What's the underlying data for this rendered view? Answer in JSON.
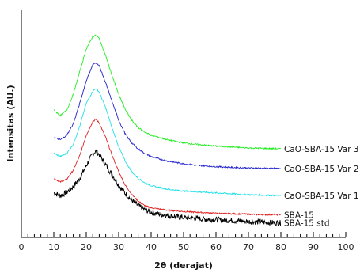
{
  "chart_data": {
    "type": "line",
    "title": "",
    "xlabel": "2θ (derajat)",
    "ylabel": "Intensitas (AU.)",
    "xlim": [
      0,
      100
    ],
    "xticks": [
      0,
      10,
      20,
      30,
      40,
      50,
      60,
      70,
      80,
      90,
      100
    ],
    "minor_tick_step": 2,
    "y_tick_labels": false,
    "grid": false,
    "legend": "inline-right",
    "series": [
      {
        "name": "SBA-15 std",
        "color": "#000000",
        "noise": 0.06,
        "x": [
          10,
          12,
          14,
          16,
          18,
          20,
          22,
          23,
          24,
          26,
          28,
          30,
          32,
          34,
          36,
          38,
          40,
          45,
          50,
          55,
          60,
          65,
          70,
          75,
          80
        ],
        "y": [
          0.98,
          0.92,
          0.99,
          1.12,
          1.3,
          1.58,
          1.84,
          1.9,
          1.82,
          1.6,
          1.38,
          1.15,
          0.97,
          0.82,
          0.7,
          0.61,
          0.55,
          0.48,
          0.44,
          0.41,
          0.39,
          0.37,
          0.35,
          0.33,
          0.32
        ]
      },
      {
        "name": "SBA-15",
        "color": "#e02020",
        "noise": 0.015,
        "x": [
          10,
          12,
          14,
          16,
          18,
          20,
          22,
          23,
          24,
          26,
          28,
          30,
          32,
          34,
          36,
          38,
          40,
          45,
          50,
          55,
          60,
          65,
          70,
          75,
          80
        ],
        "y": [
          1.3,
          1.22,
          1.28,
          1.48,
          1.8,
          2.25,
          2.55,
          2.6,
          2.52,
          2.2,
          1.8,
          1.45,
          1.15,
          0.95,
          0.8,
          0.7,
          0.65,
          0.6,
          0.57,
          0.55,
          0.53,
          0.52,
          0.51,
          0.5,
          0.5
        ]
      },
      {
        "name": "CaO-SBA-15 Var 1",
        "color": "#22e0e8",
        "noise": 0.015,
        "x": [
          10,
          12,
          14,
          16,
          18,
          20,
          22,
          23,
          24,
          26,
          28,
          30,
          32,
          34,
          36,
          38,
          40,
          45,
          50,
          55,
          60,
          65,
          70,
          75,
          80
        ],
        "y": [
          1.85,
          1.78,
          1.85,
          2.05,
          2.45,
          2.95,
          3.22,
          3.28,
          3.2,
          2.85,
          2.4,
          2.0,
          1.68,
          1.45,
          1.3,
          1.2,
          1.14,
          1.06,
          1.02,
          1.0,
          0.98,
          0.96,
          0.94,
          0.93,
          0.92
        ]
      },
      {
        "name": "CaO-SBA-15 Var 2",
        "color": "#2020cc",
        "noise": 0.015,
        "x": [
          10,
          12,
          14,
          16,
          18,
          20,
          22,
          23,
          24,
          26,
          28,
          30,
          32,
          34,
          36,
          38,
          40,
          45,
          50,
          55,
          60,
          65,
          70,
          75,
          80
        ],
        "y": [
          2.2,
          2.15,
          2.25,
          2.5,
          2.95,
          3.45,
          3.8,
          3.85,
          3.78,
          3.4,
          2.98,
          2.58,
          2.28,
          2.08,
          1.95,
          1.85,
          1.78,
          1.68,
          1.62,
          1.58,
          1.56,
          1.54,
          1.53,
          1.52,
          1.52
        ]
      },
      {
        "name": "CaO-SBA-15 Var 3",
        "color": "#22ee22",
        "noise": 0.015,
        "x": [
          10,
          12,
          14,
          16,
          18,
          20,
          22,
          23,
          24,
          26,
          28,
          30,
          32,
          34,
          36,
          38,
          40,
          45,
          50,
          55,
          60,
          65,
          70,
          75,
          80
        ],
        "y": [
          2.8,
          2.68,
          2.8,
          3.15,
          3.65,
          4.15,
          4.42,
          4.45,
          4.38,
          4.0,
          3.55,
          3.15,
          2.82,
          2.58,
          2.42,
          2.32,
          2.25,
          2.15,
          2.08,
          2.04,
          2.01,
          1.99,
          1.97,
          1.96,
          1.95
        ]
      }
    ]
  }
}
